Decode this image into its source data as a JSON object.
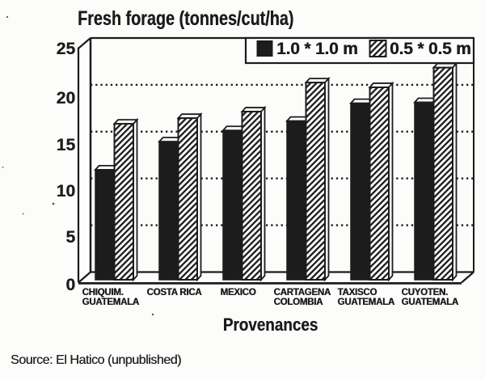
{
  "title": "Fresh forage (tonnes/cut/ha)",
  "xlabel": "Provenances",
  "source_note": "Source: El Hatico (unpublished)",
  "colors": {
    "ink": "#1c1c1c",
    "background": "#fcfcfb"
  },
  "chart_data": {
    "type": "bar",
    "style": "3d-monochrome-scanned",
    "title": "Fresh forage (tonnes/cut/ha)",
    "xlabel": "Provenances",
    "ylabel": "Fresh forage (tonnes/cut/ha)",
    "ylim": [
      0,
      25
    ],
    "yticks": [
      "0",
      "5",
      "10",
      "15",
      "20",
      "25"
    ],
    "grid": "dotted horizontal lines at 5,10,15,20",
    "legend_position": "top-right inside plot, boxed",
    "categories": [
      [
        "CHIQUIM.",
        "GUATEMALA"
      ],
      [
        "COSTA RICA"
      ],
      [
        "MEXICO"
      ],
      [
        "CARTAGENA",
        "COLOMBIA"
      ],
      [
        "TAXISCO",
        "GUATEMALA"
      ],
      [
        "CUYOTEN.",
        "GUATEMALA"
      ]
    ],
    "series": [
      {
        "name": "1.0 * 1.0 m",
        "pattern": "solid-black",
        "values": [
          11.8,
          14.8,
          16.0,
          17.0,
          18.9,
          19.0
        ]
      },
      {
        "name": "0.5 * 0.5 m",
        "pattern": "diagonal-hatch",
        "values": [
          16.7,
          17.3,
          18.0,
          21.1,
          20.6,
          22.7
        ]
      }
    ],
    "source_note": "Source: El Hatico (unpublished)"
  }
}
